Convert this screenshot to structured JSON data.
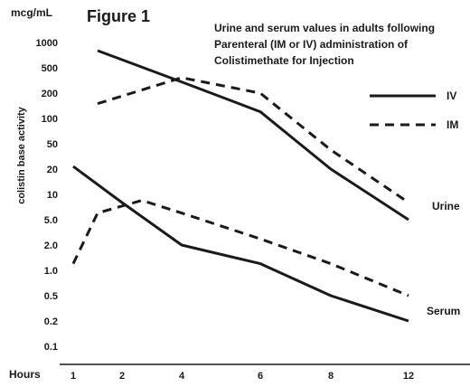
{
  "chart_data": {
    "type": "line",
    "figure_label": "Figure 1",
    "unit_label": "mcg/mL",
    "title": [
      "Urine and serum values in adults following",
      "Parenteral (IM or IV) administration of",
      "Colistimethate for Injection"
    ],
    "ylabel": "colistin base activity",
    "xlabel": "Hours",
    "y_scale": "log",
    "ylim": [
      0.1,
      1000
    ],
    "y_ticks": [
      "1000",
      "500",
      "200",
      "100",
      "50",
      "20",
      "10",
      "5.0",
      "2.0",
      "1.0",
      "0.5",
      "0.2",
      "0.1"
    ],
    "x_ticks": [
      "1",
      "2",
      "4",
      "6",
      "8",
      "12"
    ],
    "legend": [
      {
        "label": "IV",
        "style": "solid"
      },
      {
        "label": "IM",
        "style": "dashed"
      }
    ],
    "group_labels": {
      "urine": "Urine",
      "serum": "Serum"
    },
    "series": [
      {
        "group": "urine",
        "route": "IV",
        "style": "solid",
        "x": [
          "1.5",
          "4",
          "6",
          "8",
          "12"
        ],
        "y": [
          800,
          300,
          120,
          20,
          5
        ]
      },
      {
        "group": "urine",
        "route": "IM",
        "style": "dashed",
        "x": [
          "1.5",
          "4",
          "6",
          "8",
          "12"
        ],
        "y": [
          150,
          350,
          200,
          40,
          8
        ]
      },
      {
        "group": "serum",
        "route": "IV",
        "style": "solid",
        "x": [
          "1",
          "2",
          "4",
          "6",
          "8",
          "12"
        ],
        "y": [
          22,
          8,
          2,
          1.2,
          0.5,
          0.2
        ]
      },
      {
        "group": "serum",
        "route": "IM",
        "style": "dashed",
        "x": [
          "1",
          "1.5",
          "2.5",
          "4",
          "6",
          "8",
          "12"
        ],
        "y": [
          1.2,
          6,
          8.5,
          6,
          2.5,
          1.2,
          0.5
        ]
      }
    ],
    "grid": false
  }
}
